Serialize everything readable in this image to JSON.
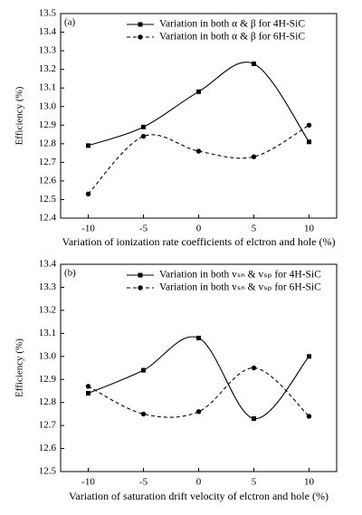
{
  "chart_data": [
    {
      "type": "line",
      "panel_label": "(a)",
      "xlabel": "Variation of ionization rate coefficients of elctron and hole (%)",
      "ylabel": "Efficiency (%)",
      "x": [
        -10,
        -5,
        0,
        5,
        10
      ],
      "xlim": [
        -12.5,
        12.5
      ],
      "xticks": [
        -10,
        -5,
        0,
        5,
        10
      ],
      "ylim": [
        12.4,
        13.5
      ],
      "yticks": [
        12.4,
        12.5,
        12.6,
        12.7,
        12.8,
        12.9,
        {
          "value": 13,
          "label": "13.0"
        },
        13.1,
        13.2,
        13.3,
        13.4,
        13.5
      ],
      "series": [
        {
          "name": "Variation in both α & β for 4H-SiC",
          "color": "#000000",
          "linestyle": "solid",
          "marker": "square",
          "values": [
            12.79,
            12.89,
            13.08,
            13.23,
            12.81
          ]
        },
        {
          "name": "Variation in both α & β for 6H-SiC",
          "color": "#000000",
          "linestyle": "dashed",
          "marker": "circle",
          "values": [
            12.53,
            12.84,
            12.76,
            12.73,
            12.9
          ]
        }
      ]
    },
    {
      "type": "line",
      "panel_label": "(b)",
      "xlabel": "Variation of saturation drift velocity of elctron and hole (%)",
      "ylabel": "Efficiency (%)",
      "x": [
        -10,
        -5,
        0,
        5,
        10
      ],
      "xlim": [
        -12.5,
        12.5
      ],
      "xticks": [
        -10,
        -5,
        0,
        5,
        10
      ],
      "ylim": [
        12.5,
        13.4
      ],
      "yticks": [
        12.5,
        12.6,
        12.7,
        12.8,
        12.9,
        {
          "value": 13,
          "label": "13.0"
        },
        13.1,
        13.2,
        13.3,
        13.4
      ],
      "series": [
        {
          "name": "Variation in both vₛₙ & vₛₚ for 4H-SiC",
          "color": "#000000",
          "linestyle": "solid",
          "marker": "square",
          "values": [
            12.84,
            12.94,
            13.08,
            12.73,
            13.0
          ]
        },
        {
          "name": "Variation in both vₛₙ & vₛₚ for 6H-SiC",
          "color": "#000000",
          "linestyle": "dashed",
          "marker": "circle",
          "values": [
            12.87,
            12.75,
            12.76,
            12.95,
            12.74
          ]
        }
      ]
    }
  ]
}
